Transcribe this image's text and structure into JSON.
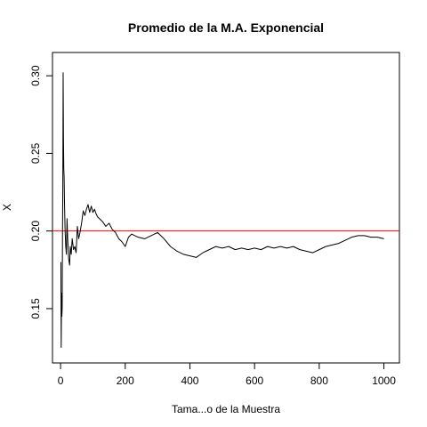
{
  "chart_data": {
    "type": "line",
    "title": "Promedio de la M.A. Exponencial",
    "xlabel": "Tama...o de la Muestra",
    "ylabel": "X",
    "xlim": [
      -25,
      1048
    ],
    "ylim": [
      0.115,
      0.315
    ],
    "xticks": [
      0,
      200,
      400,
      600,
      800,
      1000
    ],
    "xtick_labels": [
      "0",
      "200",
      "400",
      "600",
      "800",
      "1000"
    ],
    "yticks": [
      0.15,
      0.2,
      0.25,
      0.3
    ],
    "ytick_labels": [
      "0.15",
      "0.20",
      "0.25",
      "0.30"
    ],
    "grid": false,
    "reference_line": {
      "y": 0.2,
      "color": "#ff0000"
    },
    "series": [
      {
        "color": "#000000",
        "x": [
          1,
          2,
          3,
          4,
          5,
          6,
          7,
          8,
          9,
          10,
          11,
          12,
          14,
          16,
          18,
          20,
          22,
          25,
          28,
          30,
          33,
          36,
          40,
          44,
          48,
          52,
          56,
          60,
          65,
          70,
          75,
          80,
          85,
          90,
          95,
          100,
          105,
          110,
          115,
          120,
          130,
          140,
          150,
          160,
          170,
          180,
          190,
          200,
          210,
          220,
          230,
          240,
          260,
          280,
          300,
          320,
          340,
          360,
          380,
          400,
          420,
          440,
          460,
          480,
          500,
          520,
          540,
          560,
          580,
          600,
          620,
          640,
          660,
          680,
          700,
          720,
          740,
          760,
          780,
          800,
          820,
          840,
          860,
          880,
          900,
          920,
          940,
          960,
          980,
          1000
        ],
        "y": [
          0.18,
          0.125,
          0.16,
          0.145,
          0.15,
          0.2,
          0.23,
          0.302,
          0.26,
          0.24,
          0.235,
          0.22,
          0.2,
          0.19,
          0.185,
          0.208,
          0.195,
          0.182,
          0.178,
          0.19,
          0.185,
          0.195,
          0.188,
          0.19,
          0.186,
          0.203,
          0.195,
          0.199,
          0.205,
          0.213,
          0.21,
          0.214,
          0.217,
          0.212,
          0.216,
          0.212,
          0.214,
          0.211,
          0.209,
          0.208,
          0.206,
          0.203,
          0.205,
          0.201,
          0.199,
          0.195,
          0.193,
          0.19,
          0.196,
          0.198,
          0.197,
          0.196,
          0.195,
          0.197,
          0.199,
          0.195,
          0.19,
          0.187,
          0.185,
          0.184,
          0.183,
          0.186,
          0.188,
          0.19,
          0.189,
          0.19,
          0.188,
          0.189,
          0.188,
          0.189,
          0.188,
          0.19,
          0.189,
          0.19,
          0.189,
          0.19,
          0.188,
          0.187,
          0.186,
          0.188,
          0.19,
          0.191,
          0.192,
          0.194,
          0.196,
          0.197,
          0.197,
          0.196,
          0.196,
          0.195
        ]
      }
    ]
  }
}
